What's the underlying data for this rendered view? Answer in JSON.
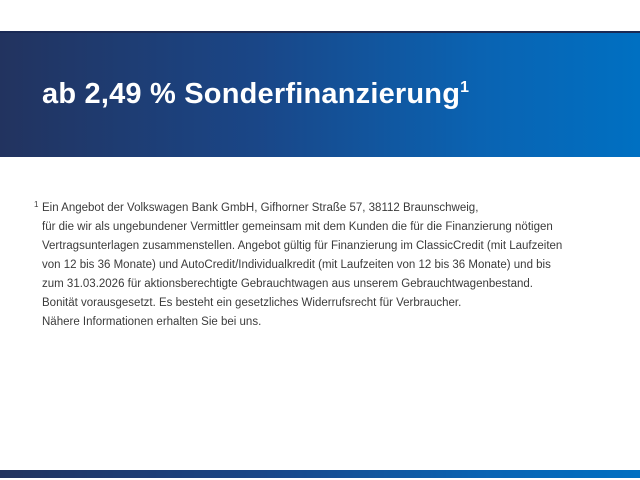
{
  "page": {
    "background_color": "#ffffff"
  },
  "header": {
    "title": "ab 2,49 % Sonderfinanzierung",
    "footnote_marker": "1",
    "text_color": "#ffffff",
    "gradient_left_color": "#22335f",
    "gradient_right_color": "#0070c2"
  },
  "footnote": {
    "marker": "1",
    "text_color": "#3b3b3b",
    "text": "Ein Angebot der Volkswagen Bank GmbH, Gifhorner Straße 57, 38112 Braunschweig,\nfür die wir als ungebundener Vermittler gemeinsam mit dem Kunden die für die Finanzierung nötigen\nVertragsunterlagen zusammenstellen. Angebot gültig für Finanzierung im ClassicCredit (mit Laufzeiten\nvon 12 bis 36 Monate) und AutoCredit/Individualkredit (mit Laufzeiten von 12 bis 36 Monate) und bis\nzum 31.03.2026 für aktionsberechtigte Gebrauchtwagen aus unserem Gebrauchtwagenbestand.\nBonität vorausgesetzt. Es besteht ein gesetzliches Widerrufsrecht für Verbraucher.\nNähere Informationen erhalten Sie bei uns."
  },
  "footer": {
    "gradient_left_color": "#22335f",
    "gradient_right_color": "#0070c2"
  }
}
